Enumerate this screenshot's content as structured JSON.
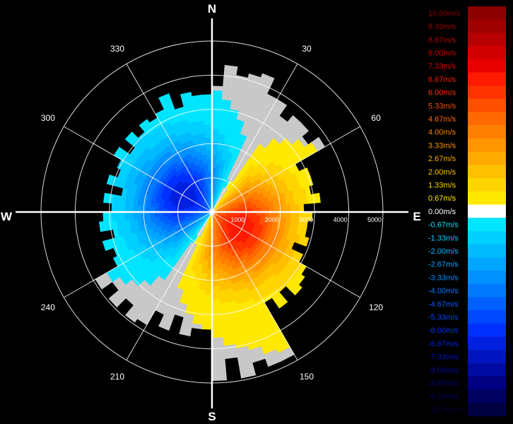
{
  "chart_data": {
    "type": "heatmap",
    "subtype": "polar-radial-velocity-ppi",
    "title": "",
    "compass": {
      "north": "N",
      "east": "E",
      "south": "S",
      "west": "W"
    },
    "azimuth_labels": [
      {
        "deg": 30,
        "label": "30"
      },
      {
        "deg": 60,
        "label": "60"
      },
      {
        "deg": 120,
        "label": "120"
      },
      {
        "deg": 150,
        "label": "150"
      },
      {
        "deg": 210,
        "label": "210"
      },
      {
        "deg": 240,
        "label": "240"
      },
      {
        "deg": 300,
        "label": "300"
      },
      {
        "deg": 330,
        "label": "330"
      }
    ],
    "range_rings": [
      {
        "range": 1000,
        "label": "1000"
      },
      {
        "range": 2000,
        "label": "2000"
      },
      {
        "range": 3000,
        "label": "3000"
      },
      {
        "range": 4000,
        "label": "4000"
      },
      {
        "range": 5000,
        "label": "5000"
      }
    ],
    "range_max": 5000,
    "colorbar": [
      {
        "label": "10.00m/s",
        "color": "#8b0000"
      },
      {
        "label": "9.33m/s",
        "color": "#a00000"
      },
      {
        "label": "8.67m/s",
        "color": "#b80000"
      },
      {
        "label": "8.00m/s",
        "color": "#d00000"
      },
      {
        "label": "7.33m/s",
        "color": "#e80000"
      },
      {
        "label": "6.67m/s",
        "color": "#ff1a00"
      },
      {
        "label": "6.00m/s",
        "color": "#ff3300"
      },
      {
        "label": "5.33m/s",
        "color": "#ff5000"
      },
      {
        "label": "4.67m/s",
        "color": "#ff6a00"
      },
      {
        "label": "4.00m/s",
        "color": "#ff8000"
      },
      {
        "label": "3.33m/s",
        "color": "#ff9600"
      },
      {
        "label": "2.67m/s",
        "color": "#ffaa00"
      },
      {
        "label": "2.00m/s",
        "color": "#ffc000"
      },
      {
        "label": "1.33m/s",
        "color": "#ffd500"
      },
      {
        "label": "0.67m/s",
        "color": "#ffe900"
      },
      {
        "label": "0.00m/s",
        "color": "#ffffff"
      },
      {
        "label": "-0.67m/s",
        "color": "#00e5ff"
      },
      {
        "label": "-1.33m/s",
        "color": "#00d0ff"
      },
      {
        "label": "-2.00m/s",
        "color": "#00bbff"
      },
      {
        "label": "-2.67m/s",
        "color": "#00a6ff"
      },
      {
        "label": "-3.33m/s",
        "color": "#0090ff"
      },
      {
        "label": "-4.00m/s",
        "color": "#0078ff"
      },
      {
        "label": "-4.67m/s",
        "color": "#0060ff"
      },
      {
        "label": "-5.33m/s",
        "color": "#0048ff"
      },
      {
        "label": "-6.00m/s",
        "color": "#0030ff"
      },
      {
        "label": "-6.67m/s",
        "color": "#0020e0"
      },
      {
        "label": "-7.33m/s",
        "color": "#0015c0"
      },
      {
        "label": "-8.00m/s",
        "color": "#000aa0"
      },
      {
        "label": "-8.67m/s",
        "color": "#000080"
      },
      {
        "label": "-9.33m/s",
        "color": "#000060"
      },
      {
        "label": "-10.00m/s",
        "color": "#000040"
      }
    ],
    "velocity_field": {
      "unit": "m/s",
      "description_levels": "receding winds from the south-east, approaching winds from the north-west",
      "peak_approaching_m_s": -6.0,
      "peak_receding_m_s": 6.0,
      "zero_line_azimuths_deg": [
        20,
        215
      ],
      "max_echo_range_by_sector": [
        {
          "az_from": 0,
          "az_to": 30,
          "range": 4300
        },
        {
          "az_from": 30,
          "az_to": 60,
          "range": 3700
        },
        {
          "az_from": 60,
          "az_to": 90,
          "range": 3100
        },
        {
          "az_from": 90,
          "az_to": 120,
          "range": 2900
        },
        {
          "az_from": 120,
          "az_to": 150,
          "range": 3400
        },
        {
          "az_from": 150,
          "az_to": 180,
          "range": 4900
        },
        {
          "az_from": 180,
          "az_to": 210,
          "range": 3600
        },
        {
          "az_from": 210,
          "az_to": 240,
          "range": 3900
        },
        {
          "az_from": 240,
          "az_to": 270,
          "range": 3300
        },
        {
          "az_from": 270,
          "az_to": 300,
          "range": 3100
        },
        {
          "az_from": 300,
          "az_to": 330,
          "range": 3300
        },
        {
          "az_from": 330,
          "az_to": 360,
          "range": 3600
        }
      ]
    }
  }
}
